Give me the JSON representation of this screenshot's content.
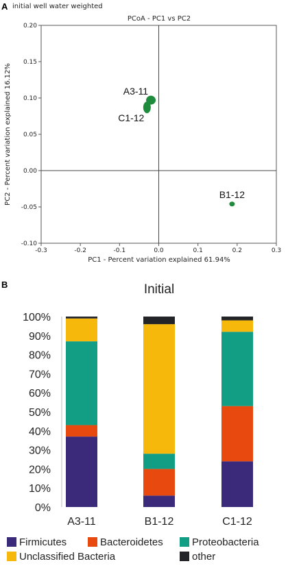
{
  "panels": {
    "a_letter": "A",
    "b_letter": "B"
  },
  "chart_data": [
    {
      "type": "scatter",
      "subtitle": "initial well water weighted",
      "title": "PCoA - PC1 vs PC2",
      "xlabel": "PC1 - Percent variation explained 61.94%",
      "ylabel": "PC2 - Percent variation explained 16.12%",
      "xlim": [
        -0.3,
        0.3
      ],
      "ylim": [
        -0.1,
        0.2
      ],
      "xticks": [
        "-0.3",
        "-0.2",
        "-0.1",
        "0.0",
        "0.1",
        "0.2",
        "0.3"
      ],
      "yticks": [
        "0.20",
        "0.15",
        "0.10",
        "0.05",
        "0.00",
        "-0.05",
        "-0.10"
      ],
      "point_color": "#1e8c3c",
      "points": [
        {
          "label": "A3-11",
          "x": -0.02,
          "y": 0.097
        },
        {
          "label": "C1-12",
          "x": -0.03,
          "y": 0.087
        },
        {
          "label": "B1-12",
          "x": 0.187,
          "y": -0.046
        }
      ]
    },
    {
      "type": "bar",
      "stacked": true,
      "title": "Initial",
      "categories": [
        "A3-11",
        "B1-12",
        "C1-12"
      ],
      "ylim": [
        0,
        100
      ],
      "yticks": [
        "0%",
        "10%",
        "20%",
        "30%",
        "40%",
        "50%",
        "60%",
        "70%",
        "80%",
        "90%",
        "100%"
      ],
      "series": [
        {
          "name": "Firmicutes",
          "color": "#3b2a7a",
          "values": [
            37,
            6,
            24
          ]
        },
        {
          "name": "Bacteroidetes",
          "color": "#e8490f",
          "values": [
            6,
            14,
            29
          ]
        },
        {
          "name": "Proteobacteria",
          "color": "#129e84",
          "values": [
            44,
            8,
            39
          ]
        },
        {
          "name": "Unclassified Bacteria",
          "color": "#f6b80b",
          "values": [
            12,
            68,
            6
          ]
        },
        {
          "name": "other",
          "color": "#222428",
          "values": [
            1,
            4,
            2
          ]
        }
      ],
      "legend_position": "bottom"
    }
  ]
}
